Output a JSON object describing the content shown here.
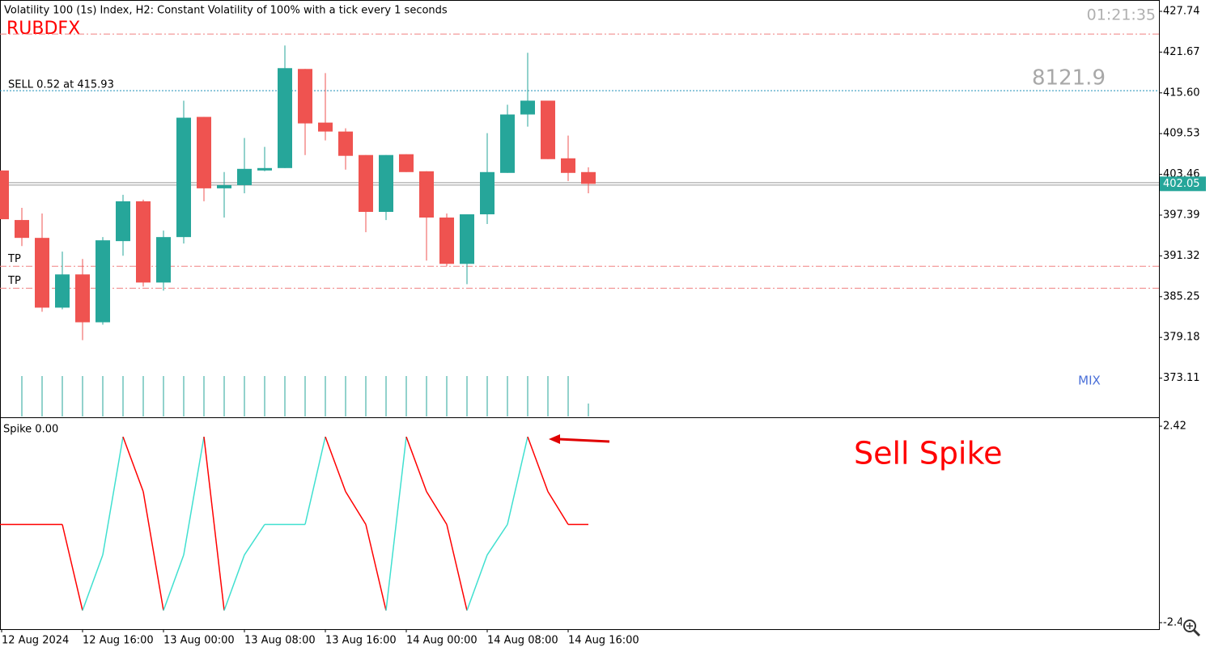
{
  "chart_data": [
    {
      "type": "candlestick",
      "title": "Volatility 100 (1s) Index, H2:  Constant Volatility of 100% with a tick every 1 seconds",
      "brand": "RUBDFX",
      "timer": "01:21:35",
      "balance": "8121.9",
      "order_label": "SELL 0.52 at 415.93",
      "tp_labels": [
        "TP",
        "TP"
      ],
      "mix_label": "MIX",
      "categories": [
        "12 Aug 2024",
        null,
        null,
        null,
        "12 Aug 16:00",
        null,
        null,
        null,
        "13 Aug 00:00",
        null,
        null,
        null,
        "13 Aug 08:00",
        null,
        null,
        null,
        "13 Aug 16:00",
        null,
        null,
        null,
        "14 Aug 00:00",
        null,
        null,
        null,
        "14 Aug 08:00",
        null,
        null,
        null,
        "14 Aug 16:00",
        null
      ],
      "open": [
        404.04,
        396.66,
        394.0,
        383.61,
        388.56,
        381.43,
        393.52,
        399.45,
        387.35,
        394.12,
        412.02,
        401.38,
        401.86,
        404.04,
        404.4,
        419.16,
        411.17,
        409.84,
        406.34,
        397.87,
        406.46,
        403.92,
        397.03,
        390.13,
        397.51,
        403.68,
        412.38,
        414.44,
        405.85,
        403.8
      ],
      "high": [
        404.04,
        398.48,
        397.63,
        391.95,
        390.86,
        394.12,
        400.41,
        399.69,
        395.09,
        414.44,
        412.02,
        403.8,
        408.88,
        407.55,
        422.66,
        419.16,
        418.55,
        410.33,
        406.34,
        406.34,
        406.46,
        403.92,
        397.63,
        397.51,
        409.6,
        413.83,
        421.57,
        414.44,
        409.24,
        404.52
      ],
      "low": [
        396.78,
        392.79,
        383.0,
        383.36,
        378.77,
        381.07,
        391.34,
        386.75,
        386.14,
        393.16,
        399.45,
        397.03,
        400.65,
        403.92,
        404.4,
        406.34,
        408.51,
        404.16,
        394.85,
        396.66,
        403.8,
        390.62,
        389.77,
        387.11,
        396.06,
        403.68,
        410.57,
        405.73,
        402.47,
        400.65
      ],
      "close": [
        396.78,
        394.0,
        383.61,
        388.56,
        381.43,
        393.64,
        399.45,
        387.35,
        394.12,
        411.9,
        401.38,
        401.86,
        404.28,
        404.4,
        419.28,
        411.05,
        409.84,
        406.22,
        397.87,
        406.34,
        403.8,
        397.03,
        390.13,
        397.51,
        403.8,
        412.38,
        414.44,
        405.73,
        403.68,
        402.05
      ],
      "volumes": [
        null,
        7200,
        7200,
        7200,
        7200,
        7200,
        7200,
        7200,
        7200,
        7200,
        7200,
        7200,
        7200,
        7200,
        7200,
        7200,
        7200,
        7200,
        7200,
        7200,
        7200,
        7200,
        7200,
        7200,
        7200,
        7200,
        7200,
        7200,
        7200,
        2300
      ],
      "up_color": "#26a69a",
      "down_color": "#ef5350",
      "volume_color": "#26a69a",
      "last_price": 402.05,
      "order_level": 415.93,
      "stop_level": 424.35,
      "tp_levels": [
        389.77,
        386.51
      ],
      "ylim": [
        367.4,
        429.43
      ],
      "yticks": [
        427.74,
        421.67,
        {
          "value": 415.6,
          "label": "415.60"
        },
        409.53,
        403.46,
        397.39,
        391.32,
        385.25,
        379.18,
        373.11
      ]
    },
    {
      "type": "line",
      "title": "Spike 0.00",
      "annotation": "Sell Spike",
      "values": [
        0,
        0,
        0,
        0,
        -2.12,
        -0.75,
        2.16,
        0.81,
        -2.12,
        -0.75,
        2.16,
        -2.12,
        -0.75,
        0,
        0,
        0,
        2.16,
        0.81,
        0,
        -2.12,
        2.16,
        0.81,
        0,
        -2.12,
        -0.75,
        0,
        2.16,
        0.81,
        0,
        0
      ],
      "up_color": "#40e0d0",
      "down_color": "#ff0000",
      "ylim": [
        -2.58,
        2.62
      ],
      "yticks": [
        2.42,
        -2.42
      ]
    }
  ]
}
